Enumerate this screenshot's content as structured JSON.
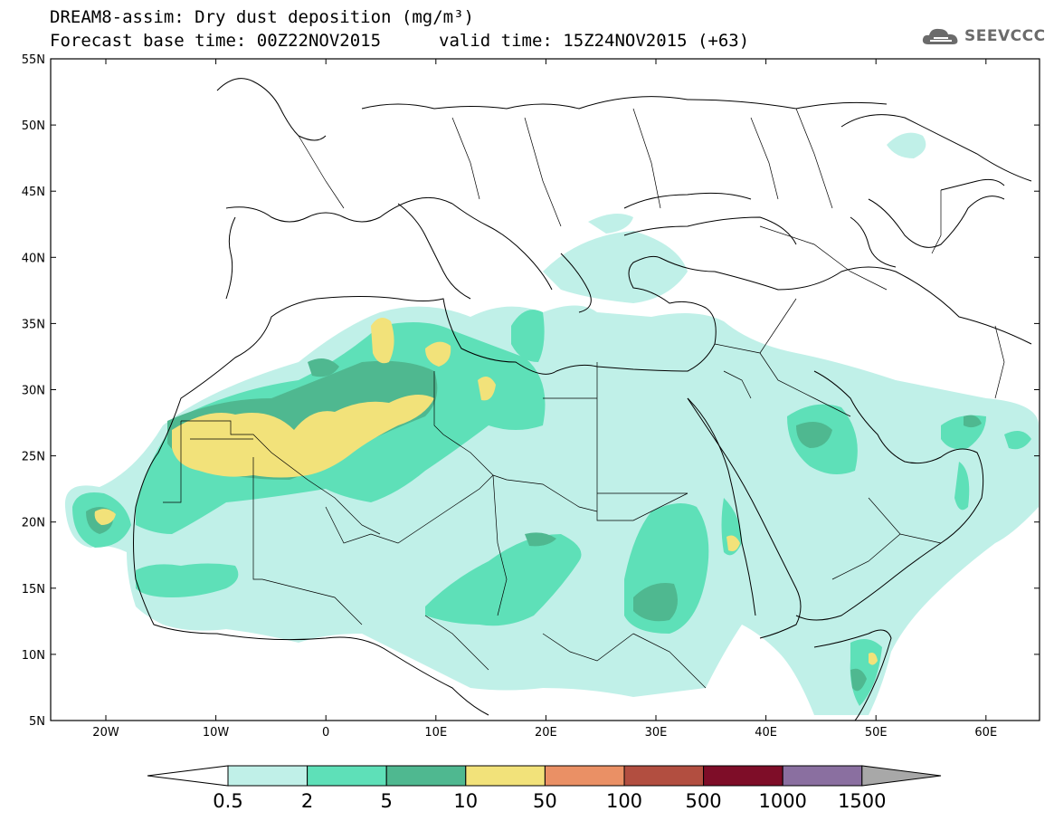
{
  "header": {
    "title": "DREAM8-assim: Dry dust deposition (mg/m³)",
    "base_time": "Forecast base time: 00Z22NOV2015",
    "valid_time": "valid time: 15Z24NOV2015 (+63)"
  },
  "logo": {
    "text": "SEEVCCC",
    "icon": "cloud-icon"
  },
  "axes": {
    "lat_labels": [
      "55N",
      "50N",
      "45N",
      "40N",
      "35N",
      "30N",
      "25N",
      "20N",
      "15N",
      "10N",
      "5N"
    ],
    "lon_labels": [
      "20W",
      "10W",
      "0",
      "10E",
      "20E",
      "30E",
      "40E",
      "50E",
      "60E"
    ]
  },
  "legend": {
    "labels": [
      "0.5",
      "2",
      "5",
      "10",
      "50",
      "100",
      "500",
      "1000",
      "1500"
    ],
    "colors": [
      "#c0f0e8",
      "#5ee0b8",
      "#4fb890",
      "#f2e27a",
      "#ea9065",
      "#b24e40",
      "#7e0d28",
      "#8a6fa0"
    ],
    "under_color": "#ffffff",
    "over_color": "#a8a8a8"
  },
  "colors": {
    "level1": "#c0f0e8",
    "level2": "#5ee0b8",
    "level3": "#4fb890",
    "level4": "#f2e27a"
  }
}
